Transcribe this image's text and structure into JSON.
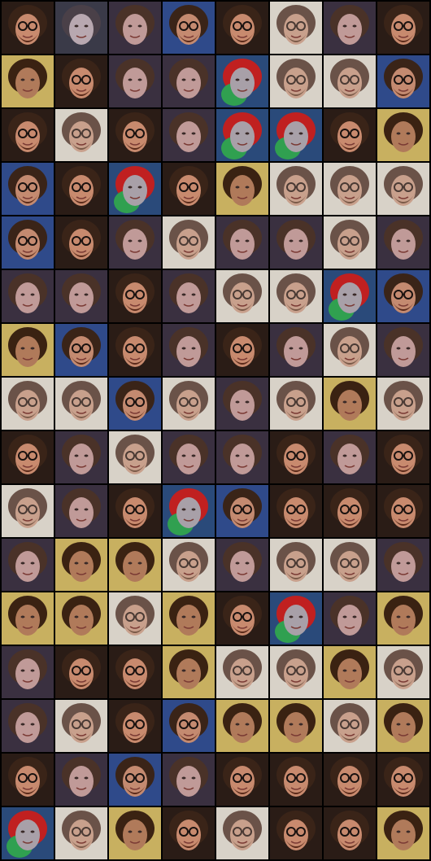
{
  "grid": {
    "rows": 16,
    "cols": 8,
    "tiles": [
      [
        "glasses-man",
        "smiling-face",
        "brunette-woman",
        "glasses-man-blue",
        "glasses-man",
        "grey-man",
        "brunette-woman",
        "glasses-man"
      ],
      [
        "yellow-woman",
        "glasses-man",
        "brunette-woman",
        "brunette-woman",
        "parrot-face",
        "grey-man",
        "grey-man",
        "glasses-man-blue"
      ],
      [
        "glasses-man",
        "grey-man",
        "glasses-man",
        "brunette-woman",
        "parrot-face",
        "parrot-face",
        "glasses-man",
        "yellow-woman"
      ],
      [
        "glasses-man-blue",
        "glasses-man",
        "parrot-face",
        "glasses-man",
        "yellow-woman",
        "grey-man",
        "grey-man",
        "grey-man"
      ],
      [
        "glasses-man-blue",
        "glasses-man",
        "brunette-woman",
        "grey-man",
        "brunette-woman",
        "brunette-woman",
        "grey-man",
        "brunette-woman"
      ],
      [
        "brunette-woman",
        "brunette-woman",
        "glasses-man",
        "brunette-woman",
        "grey-man",
        "grey-man",
        "parrot-face",
        "glasses-man-blue"
      ],
      [
        "yellow-woman",
        "glasses-man-blue",
        "glasses-man",
        "brunette-woman",
        "glasses-man",
        "brunette-woman",
        "grey-man",
        "brunette-woman"
      ],
      [
        "grey-man",
        "grey-man",
        "glasses-man-blue",
        "grey-man",
        "brunette-woman",
        "grey-man",
        "yellow-woman",
        "grey-man"
      ],
      [
        "glasses-man",
        "brunette-woman",
        "grey-man",
        "brunette-woman",
        "brunette-woman",
        "glasses-man",
        "brunette-woman",
        "glasses-man"
      ],
      [
        "grey-man",
        "brunette-woman",
        "glasses-man",
        "parrot-face",
        "glasses-man-blue",
        "glasses-man",
        "glasses-man",
        "glasses-man"
      ],
      [
        "brunette-woman",
        "yellow-woman",
        "yellow-woman",
        "grey-man",
        "brunette-woman",
        "grey-man",
        "grey-man",
        "brunette-woman"
      ],
      [
        "yellow-woman",
        "yellow-woman",
        "grey-man",
        "yellow-woman",
        "glasses-man",
        "parrot-face",
        "brunette-woman",
        "yellow-woman"
      ],
      [
        "brunette-woman",
        "glasses-man",
        "glasses-man",
        "yellow-woman",
        "grey-man",
        "grey-man",
        "yellow-woman",
        "grey-man"
      ],
      [
        "brunette-woman",
        "grey-man",
        "glasses-man",
        "glasses-man-blue",
        "yellow-woman",
        "yellow-woman",
        "grey-man",
        "yellow-woman"
      ],
      [
        "glasses-man",
        "brunette-woman",
        "glasses-man-blue",
        "brunette-woman",
        "glasses-man",
        "glasses-man",
        "glasses-man",
        "glasses-man"
      ],
      [
        "parrot-face",
        "grey-man",
        "yellow-woman",
        "glasses-man",
        "grey-man",
        "glasses-man",
        "glasses-man",
        "yellow-woman"
      ]
    ]
  },
  "palettes": {
    "glasses-man": {
      "bg": "#2a1c16",
      "skin": "#c88a6e",
      "hair": "#3a2418",
      "beard": "#5a2a1a",
      "glasses": "#1a1210"
    },
    "glasses-man-blue": {
      "bg": "#2f4a8a",
      "skin": "#c48a70",
      "hair": "#3a2418",
      "beard": "#5a2a1a",
      "glasses": "#1a1210"
    },
    "grey-man": {
      "bg": "#d8d2c8",
      "skin": "#c8a08c",
      "hair": "#6a5248",
      "beard": "#7a5a48",
      "glasses": "#4a3a34"
    },
    "brunette-woman": {
      "bg": "#3a3040",
      "skin": "#c09a98",
      "hair": "#4a3228",
      "beard": "#b08078",
      "glasses": "#c09a98"
    },
    "yellow-woman": {
      "bg": "#c8b060",
      "skin": "#b07a5a",
      "hair": "#3a2212",
      "beard": "#a06a4a",
      "glasses": "#b07a5a"
    },
    "parrot-face": {
      "bg": "#2a4a7a",
      "skin": "#a8a0a8",
      "hair": "#c02020",
      "beard": "#30a050",
      "glasses": "#a8a0a8"
    },
    "smiling-face": {
      "bg": "#3a3a48",
      "skin": "#b8a8b0",
      "hair": "#4a4048",
      "beard": "#a09098",
      "glasses": "#b8a8b0"
    }
  }
}
